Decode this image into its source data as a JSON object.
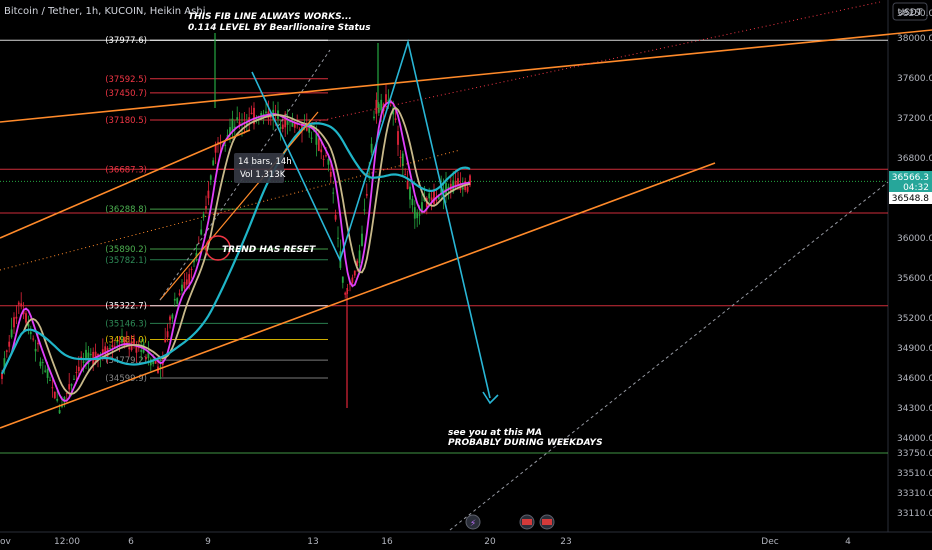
{
  "header": {
    "symbol_line": "Bitcoin / Tether, 1h, KUCOIN, Heikin Ashi",
    "currency_badge": "USDT"
  },
  "annotations": {
    "fib_note_line1": "THIS FIB LINE ALWAYS WORKS...",
    "fib_note_line2": "0.114 LEVEL BY Bearllionaire Status",
    "trend_reset": "TREND HAS RESET",
    "ma_note_line1": "see you at this MA",
    "ma_note_line2": "PROBABLY DURING WEEKDAYS",
    "tooltip_line1": "14 bars, 14h",
    "tooltip_line2": "Vol 1.313K"
  },
  "price_tags": {
    "last_price": "36566.3",
    "countdown": "04:32",
    "second_price": "36548.8"
  },
  "colors": {
    "background": "#000000",
    "up_candle": "#26a641",
    "down_candle": "#e0243a",
    "fib_red": "#f23645",
    "fib_green": "#4caf50",
    "trendline": "#ff8a2a",
    "projection": "#29b6d6",
    "ma_fast": "#e040fb",
    "ma_mid": "#c8b98a",
    "ma_slow": "#1fb5c8"
  },
  "chart_data": {
    "type": "candlestick",
    "title": "Bitcoin / Tether, 1h, KUCOIN, Heikin Ashi",
    "y_unit": "USDT",
    "ylim": [
      33000,
      38450
    ],
    "y_ticks": [
      "38250.0",
      "38000.0",
      "37600.0",
      "37200.0",
      "36800.0",
      "36400.0",
      "36000.0",
      "35600.0",
      "35200.0",
      "34900.0",
      "34600.0",
      "34300.0",
      "34000.0",
      "33750.0",
      "33510.0",
      "33310.0",
      "33110.0"
    ],
    "x_ticks": [
      "12:00",
      "6",
      "9",
      "13",
      "16",
      "20",
      "23",
      "Dec",
      "4"
    ],
    "x_tick_edge_label": "ov",
    "fib_levels": [
      {
        "label": "(37977.6)",
        "value": 37977.6,
        "color": "#ffffff"
      },
      {
        "label": "(37592.5)",
        "value": 37592.5,
        "color": "#f23645"
      },
      {
        "label": "(37450.7)",
        "value": 37450.7,
        "color": "#f23645"
      },
      {
        "label": "(37180.5)",
        "value": 37180.5,
        "color": "#f23645"
      },
      {
        "label": "(36687.3)",
        "value": 36687.3,
        "color": "#f23645"
      },
      {
        "label": "(36288.8)",
        "value": 36288.8,
        "color": "#4caf50"
      },
      {
        "label": "(35890.2)",
        "value": 35890.2,
        "color": "#4caf50"
      },
      {
        "label": "(35782.1)",
        "value": 35782.1,
        "color": "#2e8b57"
      },
      {
        "label": "(35322.7)",
        "value": 35322.7,
        "color": "#ffffff"
      },
      {
        "label": "(35146.3)",
        "value": 35146.3,
        "color": "#2e8b57"
      },
      {
        "label": "(34985.0)",
        "value": 34985.0,
        "color": "#e6c200"
      },
      {
        "label": "(34779.2)",
        "value": 34779.2,
        "color": "#888888"
      },
      {
        "label": "(34599.9)",
        "value": 34599.9,
        "color": "#888888"
      }
    ],
    "horizontal_levels": [
      {
        "value": 37977.6,
        "color": "#ffffff"
      },
      {
        "value": 36687.3,
        "color": "#f23645"
      },
      {
        "value": 36250.0,
        "color": "#f23645"
      },
      {
        "value": 35322.7,
        "color": "#f23645"
      },
      {
        "value": 33720.0,
        "color": "#4caf50"
      }
    ],
    "last_price": 36566.3,
    "second_price": 36548.8
  }
}
